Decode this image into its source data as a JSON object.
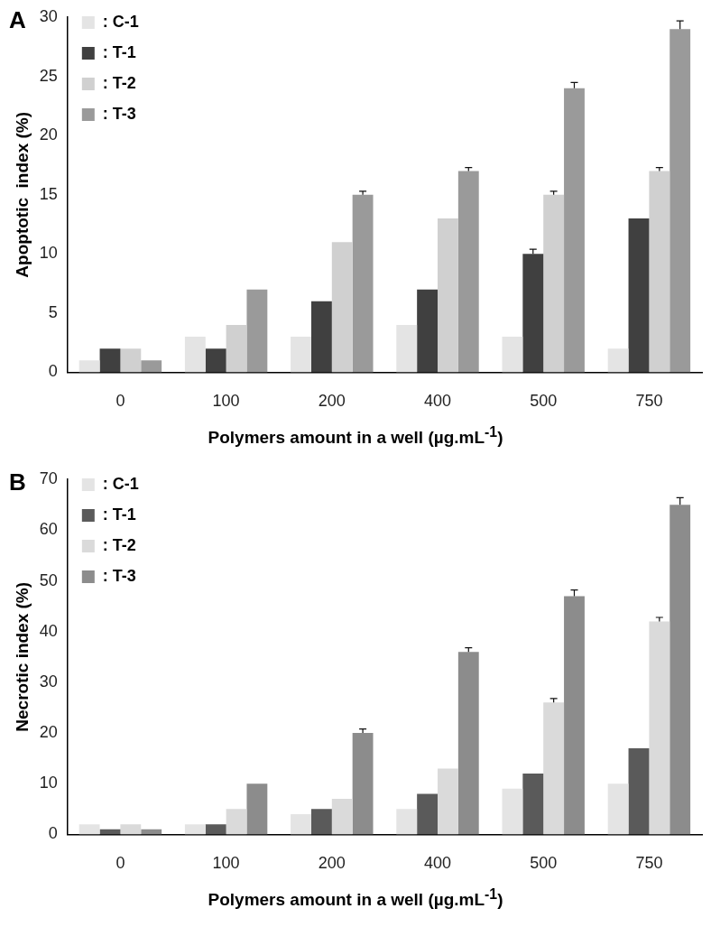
{
  "chart_data": [
    {
      "type": "bar",
      "title": "A",
      "xlabel": "Polymers amount in a well (µg.mL$^{-1}$)",
      "ylabel": "Apoptotic  index (%)",
      "categories": [
        "0",
        "100",
        "200",
        "400",
        "500",
        "750"
      ],
      "series": [
        {
          "name": ": C-1",
          "color": "#e4e4e4",
          "values": [
            1,
            3,
            3,
            4,
            3,
            2
          ]
        },
        {
          "name": ": T-1",
          "color": "#404040",
          "values": [
            2,
            2,
            6,
            7,
            10,
            13
          ],
          "errors": [
            null,
            null,
            null,
            null,
            0.4,
            null
          ]
        },
        {
          "name": ": T-2",
          "color": "#d0d0d0",
          "values": [
            2,
            4,
            11,
            13,
            15,
            17
          ],
          "errors": [
            null,
            null,
            null,
            null,
            0.3,
            0.3
          ]
        },
        {
          "name": ": T-3",
          "color": "#9a9a9a",
          "values": [
            1,
            7,
            15,
            17,
            24,
            29
          ],
          "errors": [
            null,
            null,
            0.3,
            0.3,
            0.5,
            0.7
          ]
        }
      ],
      "ylim": [
        0,
        30
      ],
      "yticks": [
        0,
        5,
        10,
        15,
        20,
        25,
        30
      ],
      "grid": false,
      "legend": "top left"
    },
    {
      "type": "bar",
      "title": "B",
      "xlabel": "Polymers amount in a well (µg.mL$^{-1}$)",
      "ylabel": "Necrotic index (%)",
      "categories": [
        "0",
        "100",
        "200",
        "400",
        "500",
        "750"
      ],
      "series": [
        {
          "name": ": C-1",
          "color": "#e4e4e4",
          "values": [
            2,
            2,
            4,
            5,
            9,
            10
          ]
        },
        {
          "name": ": T-1",
          "color": "#5a5a5a",
          "values": [
            1,
            2,
            5,
            8,
            12,
            17
          ]
        },
        {
          "name": ": T-2",
          "color": "#dadada",
          "values": [
            2,
            5,
            7,
            13,
            26,
            42
          ],
          "errors": [
            null,
            null,
            null,
            null,
            0.8,
            0.8
          ]
        },
        {
          "name": ": T-3",
          "color": "#8c8c8c",
          "values": [
            1,
            10,
            20,
            36,
            47,
            65
          ],
          "errors": [
            null,
            null,
            0.8,
            0.8,
            1.2,
            1.4
          ]
        }
      ],
      "ylim": [
        0,
        70
      ],
      "yticks": [
        0,
        10,
        20,
        30,
        40,
        50,
        60,
        70
      ],
      "grid": false,
      "legend": "top left"
    }
  ]
}
